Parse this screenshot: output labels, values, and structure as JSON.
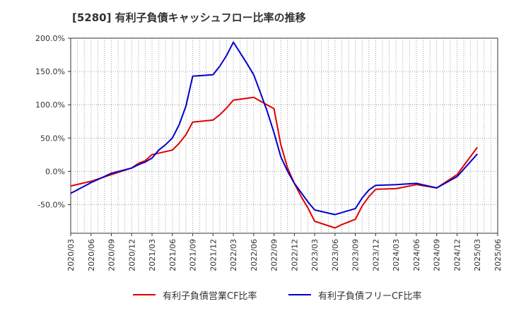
{
  "chart_data": {
    "type": "line",
    "title": "[5280]  有利子負債キャッシュフロー比率の推移",
    "xlabel": "",
    "ylabel": "",
    "ylim": [
      -93,
      200
    ],
    "yticks": [
      200,
      150,
      100,
      50,
      0,
      -50
    ],
    "ytick_labels": [
      "200.0%",
      "150.0%",
      "100.0%",
      "50.0%",
      "0.0%",
      "-50.0%"
    ],
    "xlim": [
      "2020/03",
      "2025/06"
    ],
    "xtick_labels": [
      "2020/03",
      "2020/06",
      "2020/09",
      "2020/12",
      "2021/03",
      "2021/06",
      "2021/09",
      "2021/12",
      "2022/03",
      "2022/06",
      "2022/09",
      "2022/12",
      "2023/03",
      "2023/06",
      "2023/09",
      "2023/12",
      "2024/03",
      "2024/06",
      "2024/09",
      "2024/12",
      "2025/03",
      "2025/06"
    ],
    "grid": true,
    "legend_position": "bottom",
    "series": [
      {
        "name": "有利子負債営業CF比率",
        "color": "#e00000",
        "points": [
          [
            "2020/03",
            -22
          ],
          [
            "2020/06",
            -15
          ],
          [
            "2020/09",
            -5
          ],
          [
            "2020/12",
            5
          ],
          [
            "2021/01",
            12
          ],
          [
            "2021/02",
            16
          ],
          [
            "2021/03",
            25
          ],
          [
            "2021/06",
            32
          ],
          [
            "2021/07",
            42
          ],
          [
            "2021/08",
            55
          ],
          [
            "2021/09",
            74
          ],
          [
            "2021/12",
            77
          ],
          [
            "2022/01",
            85
          ],
          [
            "2022/02",
            95
          ],
          [
            "2022/03",
            107
          ],
          [
            "2022/06",
            111
          ],
          [
            "2022/09",
            94
          ],
          [
            "2022/10",
            40
          ],
          [
            "2022/11",
            5
          ],
          [
            "2022/12",
            -18
          ],
          [
            "2023/01",
            -38
          ],
          [
            "2023/02",
            -55
          ],
          [
            "2023/03",
            -75
          ],
          [
            "2023/06",
            -85
          ],
          [
            "2023/07",
            -80
          ],
          [
            "2023/09",
            -72
          ],
          [
            "2023/10",
            -52
          ],
          [
            "2023/11",
            -38
          ],
          [
            "2023/12",
            -27
          ],
          [
            "2024/03",
            -26
          ],
          [
            "2024/06",
            -20
          ],
          [
            "2024/09",
            -25
          ],
          [
            "2024/12",
            -5
          ],
          [
            "2025/03",
            36
          ]
        ]
      },
      {
        "name": "有利子負債フリーCF比率",
        "color": "#0000cc",
        "points": [
          [
            "2020/03",
            -33
          ],
          [
            "2020/06",
            -17
          ],
          [
            "2020/09",
            -3
          ],
          [
            "2020/12",
            5
          ],
          [
            "2021/01",
            10
          ],
          [
            "2021/02",
            14
          ],
          [
            "2021/03",
            20
          ],
          [
            "2021/04",
            32
          ],
          [
            "2021/05",
            40
          ],
          [
            "2021/06",
            50
          ],
          [
            "2021/07",
            70
          ],
          [
            "2021/08",
            98
          ],
          [
            "2021/09",
            143
          ],
          [
            "2021/12",
            145
          ],
          [
            "2022/01",
            158
          ],
          [
            "2022/02",
            174
          ],
          [
            "2022/03",
            194
          ],
          [
            "2022/04",
            178
          ],
          [
            "2022/05",
            162
          ],
          [
            "2022/06",
            145
          ],
          [
            "2022/07",
            118
          ],
          [
            "2022/08",
            90
          ],
          [
            "2022/09",
            58
          ],
          [
            "2022/10",
            22
          ],
          [
            "2022/11",
            0
          ],
          [
            "2022/12",
            -18
          ],
          [
            "2023/01",
            -32
          ],
          [
            "2023/02",
            -46
          ],
          [
            "2023/03",
            -58
          ],
          [
            "2023/06",
            -65
          ],
          [
            "2023/09",
            -56
          ],
          [
            "2023/10",
            -40
          ],
          [
            "2023/11",
            -28
          ],
          [
            "2023/12",
            -21
          ],
          [
            "2024/03",
            -20
          ],
          [
            "2024/06",
            -18
          ],
          [
            "2024/09",
            -25
          ],
          [
            "2024/12",
            -8
          ],
          [
            "2025/03",
            26
          ]
        ]
      }
    ]
  }
}
